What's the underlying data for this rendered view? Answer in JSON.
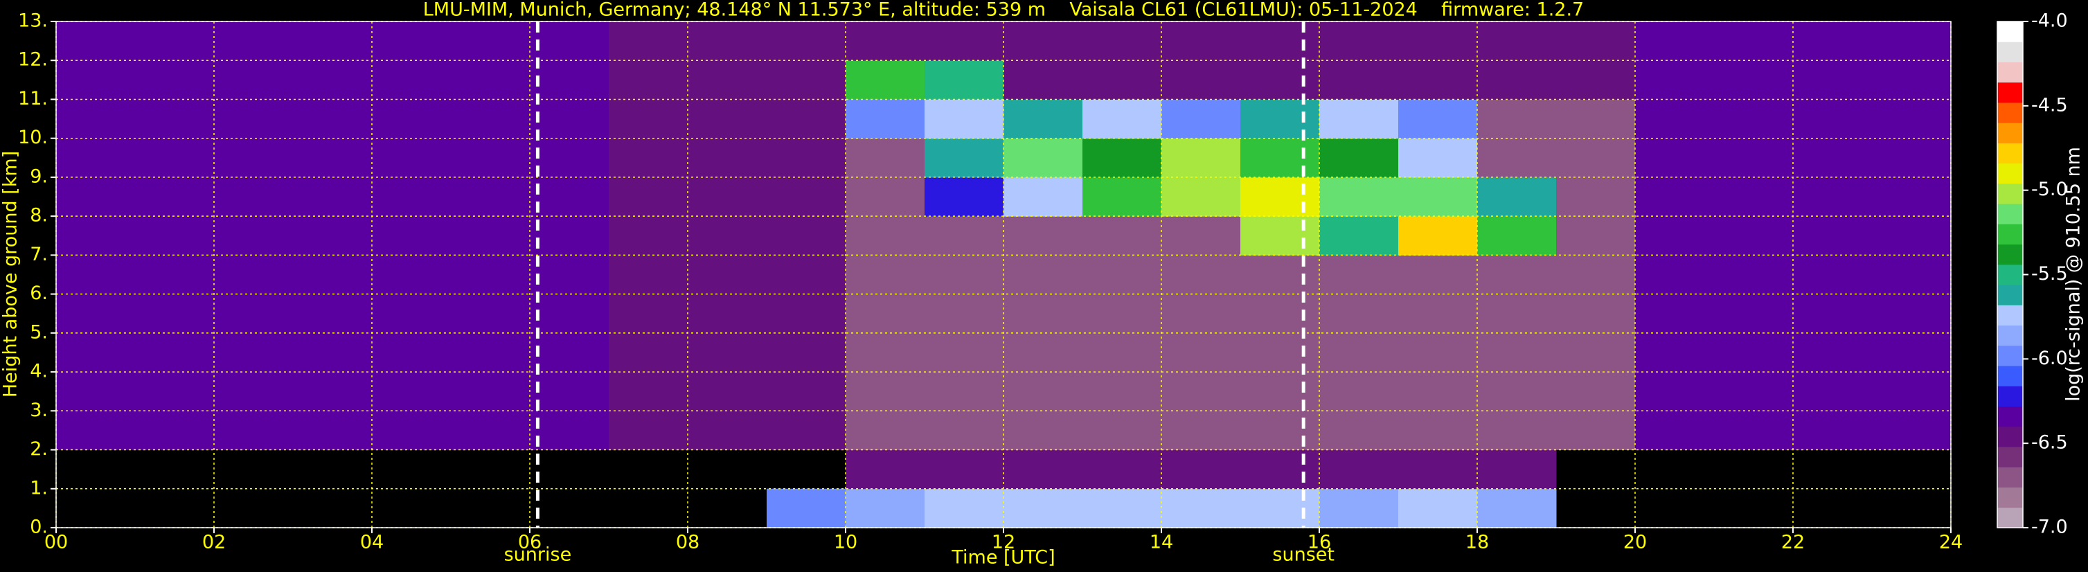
{
  "chart_data": {
    "type": "heatmap",
    "title": "LMU-MIM, Munich, Germany; 48.148° N 11.573° E, altitude: 539 m    Vaisala CL61 (CL61LMU): 05-11-2024    firmware: 1.2.7",
    "x_label": "Time [UTC]",
    "y_label": "Height above ground [km]",
    "colorbar_label": "log(rc-signal) @ 910.55 nm",
    "xlim": [
      0,
      24
    ],
    "xticks": [
      {
        "value": 0,
        "label": "00"
      },
      {
        "value": 2,
        "label": "02"
      },
      {
        "value": 4,
        "label": "04"
      },
      {
        "value": 6,
        "label": "06"
      },
      {
        "value": 8,
        "label": "08"
      },
      10,
      12,
      14,
      16,
      18,
      20,
      22,
      24
    ],
    "ylim": [
      0,
      13
    ],
    "yticks": [
      {
        "value": 0,
        "label": "0."
      },
      {
        "value": 1,
        "label": "1."
      },
      {
        "value": 2,
        "label": "2."
      },
      {
        "value": 3,
        "label": "3."
      },
      {
        "value": 4,
        "label": "4."
      },
      {
        "value": 5,
        "label": "5."
      },
      {
        "value": 6,
        "label": "6."
      },
      {
        "value": 7,
        "label": "7."
      },
      {
        "value": 8,
        "label": "8."
      },
      {
        "value": 9,
        "label": "9."
      },
      {
        "value": 10,
        "label": "10."
      },
      {
        "value": 11,
        "label": "11."
      },
      {
        "value": 12,
        "label": "12."
      },
      {
        "value": 13,
        "label": "13."
      }
    ],
    "clim": [
      -7,
      -4
    ],
    "cticks": [
      {
        "value": -4,
        "label": "-4.0"
      },
      -4.5,
      {
        "value": -5,
        "label": "-5.0"
      },
      -5.5,
      {
        "value": -6,
        "label": "-6.0"
      },
      -6.5,
      {
        "value": -7,
        "label": "-7.0"
      }
    ],
    "colorscale": [
      "#b9a3b6",
      "#a27a98",
      "#8c5585",
      "#76307a",
      "#64107e",
      "#5a00a0",
      "#2a18e0",
      "#3a5cff",
      "#6a88ff",
      "#8eaaff",
      "#b0c8ff",
      "#20a8a0",
      "#20b880",
      "#139a25",
      "#2fc23a",
      "#66e070",
      "#a8e640",
      "#e8f000",
      "#ffd000",
      "#ff9800",
      "#ff5a00",
      "#ff0000",
      "#f2c4c4",
      "#e2e2e2",
      "#ffffff"
    ],
    "grid": true,
    "grid_color": "#ffff00",
    "events": [
      {
        "label": "sunrise",
        "x": 6.1
      },
      {
        "label": "sunset",
        "x": 15.8
      }
    ],
    "z": [
      [
        null,
        null,
        null,
        null,
        null,
        null,
        null,
        null,
        null,
        -6.0,
        -5.9,
        -5.8,
        -5.7,
        -5.8,
        -5.7,
        -5.8,
        -5.9,
        -5.8,
        -5.9,
        null,
        null,
        null,
        null,
        null
      ],
      [
        null,
        null,
        null,
        null,
        null,
        null,
        null,
        null,
        null,
        null,
        -6.4,
        -6.4,
        -6.4,
        -6.4,
        -6.4,
        -6.4,
        -6.4,
        -6.4,
        -6.4,
        null,
        null,
        null,
        null,
        null
      ],
      [
        -6.3,
        -6.3,
        -6.3,
        -6.3,
        -6.3,
        -6.3,
        -6.3,
        -6.4,
        -6.4,
        -6.4,
        -6.7,
        -6.7,
        -6.7,
        -6.7,
        -6.7,
        -6.7,
        -6.7,
        -6.7,
        -6.7,
        -6.7,
        -6.3,
        -6.3,
        -6.3,
        -6.3
      ],
      [
        -6.3,
        -6.3,
        -6.3,
        -6.3,
        -6.3,
        -6.3,
        -6.3,
        -6.4,
        -6.4,
        -6.4,
        -6.7,
        -6.7,
        -6.7,
        -6.7,
        -6.7,
        -6.7,
        -6.7,
        -6.7,
        -6.7,
        -6.7,
        -6.3,
        -6.3,
        -6.3,
        -6.3
      ],
      [
        -6.3,
        -6.3,
        -6.3,
        -6.3,
        -6.3,
        -6.3,
        -6.3,
        -6.4,
        -6.4,
        -6.4,
        -6.7,
        -6.7,
        -6.7,
        -6.7,
        -6.7,
        -6.7,
        -6.7,
        -6.7,
        -6.7,
        -6.7,
        -6.3,
        -6.3,
        -6.3,
        -6.3
      ],
      [
        -6.3,
        -6.3,
        -6.3,
        -6.3,
        -6.3,
        -6.3,
        -6.3,
        -6.4,
        -6.4,
        -6.4,
        -6.7,
        -6.7,
        -6.7,
        -6.7,
        -6.7,
        -6.7,
        -6.7,
        -6.7,
        -6.7,
        -6.7,
        -6.3,
        -6.3,
        -6.3,
        -6.3
      ],
      [
        -6.3,
        -6.3,
        -6.3,
        -6.3,
        -6.3,
        -6.3,
        -6.3,
        -6.4,
        -6.4,
        -6.4,
        -6.7,
        -6.7,
        -6.7,
        -6.7,
        -6.7,
        -6.7,
        -6.7,
        -6.7,
        -6.7,
        -6.7,
        -6.3,
        -6.3,
        -6.3,
        -6.3
      ],
      [
        -6.3,
        -6.3,
        -6.3,
        -6.3,
        -6.3,
        -6.3,
        -6.3,
        -6.4,
        -6.4,
        -6.4,
        -6.7,
        -6.7,
        -6.7,
        -6.7,
        -6.7,
        -5.0,
        -5.5,
        -4.8,
        -5.3,
        -6.7,
        -6.3,
        -6.3,
        -6.3,
        -6.3
      ],
      [
        -6.3,
        -6.3,
        -6.3,
        -6.3,
        -6.3,
        -6.3,
        -6.3,
        -6.4,
        -6.4,
        -6.4,
        -6.7,
        -6.2,
        -5.8,
        -5.3,
        -5.0,
        -4.9,
        -5.2,
        -5.1,
        -5.6,
        -6.7,
        -6.3,
        -6.3,
        -6.3,
        -6.3
      ],
      [
        -6.3,
        -6.3,
        -6.3,
        -6.3,
        -6.3,
        -6.3,
        -6.3,
        -6.4,
        -6.4,
        -6.4,
        -6.7,
        -5.6,
        -5.2,
        -5.4,
        -5.0,
        -5.3,
        -5.4,
        -5.7,
        -6.7,
        -6.7,
        -6.3,
        -6.3,
        -6.3,
        -6.3
      ],
      [
        -6.3,
        -6.3,
        -6.3,
        -6.3,
        -6.3,
        -6.3,
        -6.3,
        -6.4,
        -6.4,
        -6.4,
        -6.0,
        -5.7,
        -5.6,
        -5.8,
        -6.0,
        -5.6,
        -5.8,
        -6.0,
        -6.7,
        -6.7,
        -6.3,
        -6.3,
        -6.3,
        -6.3
      ],
      [
        -6.3,
        -6.3,
        -6.3,
        -6.3,
        -6.3,
        -6.3,
        -6.3,
        -6.4,
        -6.4,
        -6.4,
        -5.3,
        -5.5,
        -6.5,
        -6.5,
        -6.5,
        -6.5,
        -6.5,
        -6.5,
        -6.5,
        -6.5,
        -6.3,
        -6.3,
        -6.3,
        -6.3
      ],
      [
        -6.3,
        -6.3,
        -6.3,
        -6.3,
        -6.3,
        -6.3,
        -6.3,
        -6.4,
        -6.4,
        -6.4,
        -6.4,
        -6.4,
        -6.4,
        -6.4,
        -6.4,
        -6.4,
        -6.4,
        -6.4,
        -6.4,
        -6.4,
        -6.3,
        -6.3,
        -6.3,
        -6.3
      ]
    ]
  }
}
